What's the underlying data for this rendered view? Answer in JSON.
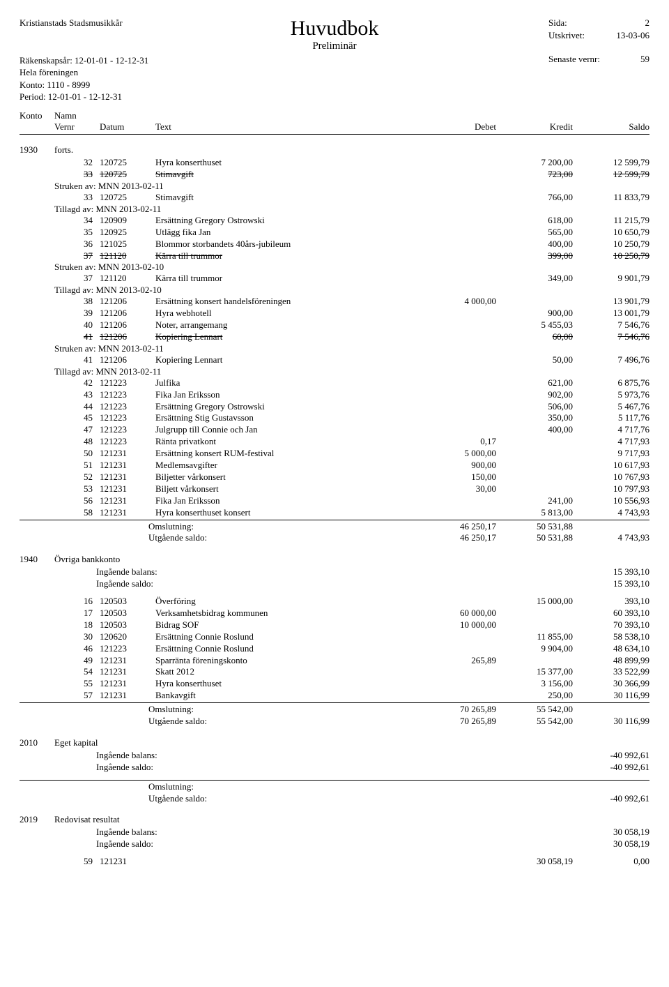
{
  "header": {
    "org": "Kristianstads Stadsmusikkår",
    "title": "Huvudbok",
    "subtitle": "Preliminär",
    "left_lines": [
      "Räkenskapsår: 12-01-01 - 12-12-31",
      "Hela föreningen",
      "Konto: 1110 - 8999",
      "Period: 12-01-01 - 12-12-31"
    ],
    "right": [
      {
        "label": "Sida:",
        "value": "2"
      },
      {
        "label": "Utskrivet:",
        "value": "13-03-06"
      },
      {
        "label": "Senaste vernr:",
        "value": "59"
      }
    ]
  },
  "col_headers": {
    "konto": "Konto",
    "namn": "Namn",
    "vernr": "Vernr",
    "datum": "Datum",
    "text": "Text",
    "debet": "Debet",
    "kredit": "Kredit",
    "saldo": "Saldo"
  },
  "acct1930": {
    "no": "1930",
    "name": "forts.",
    "entries": [
      {
        "v": "32",
        "d": "120725",
        "t": "Hyra konserthuset",
        "de": "",
        "k": "7 200,00",
        "s": "12 599,79"
      },
      {
        "v": "33",
        "d": "120725",
        "t": "Stimavgift",
        "de": "",
        "k": "723,00",
        "s": "12 599,79",
        "strike": true
      },
      {
        "note": "Struken av: MNN 2013-02-11"
      },
      {
        "v": "33",
        "d": "120725",
        "t": "Stimavgift",
        "de": "",
        "k": "766,00",
        "s": "11 833,79"
      },
      {
        "note": "Tillagd av: MNN 2013-02-11"
      },
      {
        "v": "34",
        "d": "120909",
        "t": "Ersättning Gregory Ostrowski",
        "de": "",
        "k": "618,00",
        "s": "11 215,79"
      },
      {
        "v": "35",
        "d": "120925",
        "t": "Utlägg fika Jan",
        "de": "",
        "k": "565,00",
        "s": "10 650,79"
      },
      {
        "v": "36",
        "d": "121025",
        "t": "Blommor storbandets 40års-jubileum",
        "de": "",
        "k": "400,00",
        "s": "10 250,79"
      },
      {
        "v": "37",
        "d": "121120",
        "t": "Kärra till trummor",
        "de": "",
        "k": "399,00",
        "s": "10 250,79",
        "strike": true
      },
      {
        "note": "Struken av: MNN 2013-02-10"
      },
      {
        "v": "37",
        "d": "121120",
        "t": "Kärra till trummor",
        "de": "",
        "k": "349,00",
        "s": "9 901,79"
      },
      {
        "note": "Tillagd av: MNN 2013-02-10"
      },
      {
        "v": "38",
        "d": "121206",
        "t": "Ersättning konsert handelsföreningen",
        "de": "4 000,00",
        "k": "",
        "s": "13 901,79"
      },
      {
        "v": "39",
        "d": "121206",
        "t": "Hyra webhotell",
        "de": "",
        "k": "900,00",
        "s": "13 001,79"
      },
      {
        "v": "40",
        "d": "121206",
        "t": "Noter, arrangemang",
        "de": "",
        "k": "5 455,03",
        "s": "7 546,76"
      },
      {
        "v": "41",
        "d": "121206",
        "t": "Kopiering Lennart",
        "de": "",
        "k": "60,00",
        "s": "7 546,76",
        "strike": true
      },
      {
        "note": "Struken av: MNN 2013-02-11"
      },
      {
        "v": "41",
        "d": "121206",
        "t": "Kopiering Lennart",
        "de": "",
        "k": "50,00",
        "s": "7 496,76"
      },
      {
        "note": "Tillagd av: MNN 2013-02-11"
      },
      {
        "v": "42",
        "d": "121223",
        "t": "Julfika",
        "de": "",
        "k": "621,00",
        "s": "6 875,76"
      },
      {
        "v": "43",
        "d": "121223",
        "t": "Fika Jan Eriksson",
        "de": "",
        "k": "902,00",
        "s": "5 973,76"
      },
      {
        "v": "44",
        "d": "121223",
        "t": "Ersättning Gregory Ostrowski",
        "de": "",
        "k": "506,00",
        "s": "5 467,76"
      },
      {
        "v": "45",
        "d": "121223",
        "t": "Ersättning Stig Gustavsson",
        "de": "",
        "k": "350,00",
        "s": "5 117,76"
      },
      {
        "v": "47",
        "d": "121223",
        "t": "Julgrupp till Connie och Jan",
        "de": "",
        "k": "400,00",
        "s": "4 717,76"
      },
      {
        "v": "48",
        "d": "121223",
        "t": "Ränta privatkont",
        "de": "0,17",
        "k": "",
        "s": "4 717,93"
      },
      {
        "v": "50",
        "d": "121231",
        "t": "Ersättning konsert RUM-festival",
        "de": "5 000,00",
        "k": "",
        "s": "9 717,93"
      },
      {
        "v": "51",
        "d": "121231",
        "t": "Medlemsavgifter",
        "de": "900,00",
        "k": "",
        "s": "10 617,93"
      },
      {
        "v": "52",
        "d": "121231",
        "t": "Biljetter vårkonsert",
        "de": "150,00",
        "k": "",
        "s": "10 767,93"
      },
      {
        "v": "53",
        "d": "121231",
        "t": "Biljett vårkonsert",
        "de": "30,00",
        "k": "",
        "s": "10 797,93"
      },
      {
        "v": "56",
        "d": "121231",
        "t": "Fika Jan Eriksson",
        "de": "",
        "k": "241,00",
        "s": "10 556,93"
      },
      {
        "v": "58",
        "d": "121231",
        "t": "Hyra konserthuset konsert",
        "de": "",
        "k": "5 813,00",
        "s": "4 743,93"
      }
    ],
    "oms": {
      "label": "Omslutning:",
      "d": "46 250,17",
      "k": "50 531,88",
      "s": ""
    },
    "utg": {
      "label": "Utgående saldo:",
      "d": "46 250,17",
      "k": "50 531,88",
      "s": "4 743,93"
    }
  },
  "acct1940": {
    "no": "1940",
    "name": "Övriga bankkonto",
    "ing_balans": {
      "label": "Ingående balans:",
      "val": "15 393,10"
    },
    "ing_saldo": {
      "label": "Ingående saldo:",
      "val": "15 393,10"
    },
    "entries": [
      {
        "v": "16",
        "d": "120503",
        "t": "Överföring",
        "de": "",
        "k": "15 000,00",
        "s": "393,10"
      },
      {
        "v": "17",
        "d": "120503",
        "t": "Verksamhetsbidrag kommunen",
        "de": "60 000,00",
        "k": "",
        "s": "60 393,10"
      },
      {
        "v": "18",
        "d": "120503",
        "t": "Bidrag SOF",
        "de": "10 000,00",
        "k": "",
        "s": "70 393,10"
      },
      {
        "v": "30",
        "d": "120620",
        "t": "Ersättning Connie Roslund",
        "de": "",
        "k": "11 855,00",
        "s": "58 538,10"
      },
      {
        "v": "46",
        "d": "121223",
        "t": "Ersättning Connie Roslund",
        "de": "",
        "k": "9 904,00",
        "s": "48 634,10"
      },
      {
        "v": "49",
        "d": "121231",
        "t": "Sparränta föreningskonto",
        "de": "265,89",
        "k": "",
        "s": "48 899,99"
      },
      {
        "v": "54",
        "d": "121231",
        "t": "Skatt 2012",
        "de": "",
        "k": "15 377,00",
        "s": "33 522,99"
      },
      {
        "v": "55",
        "d": "121231",
        "t": "Hyra konserthuset",
        "de": "",
        "k": "3 156,00",
        "s": "30 366,99"
      },
      {
        "v": "57",
        "d": "121231",
        "t": "Bankavgift",
        "de": "",
        "k": "250,00",
        "s": "30 116,99"
      }
    ],
    "oms": {
      "label": "Omslutning:",
      "d": "70 265,89",
      "k": "55 542,00",
      "s": ""
    },
    "utg": {
      "label": "Utgående saldo:",
      "d": "70 265,89",
      "k": "55 542,00",
      "s": "30 116,99"
    }
  },
  "acct2010": {
    "no": "2010",
    "name": "Eget kapital",
    "ing_balans": {
      "label": "Ingående balans:",
      "val": "-40 992,61"
    },
    "ing_saldo": {
      "label": "Ingående saldo:",
      "val": "-40 992,61"
    },
    "oms": {
      "label": "Omslutning:",
      "d": "",
      "k": "",
      "s": ""
    },
    "utg": {
      "label": "Utgående saldo:",
      "d": "",
      "k": "",
      "s": "-40 992,61"
    }
  },
  "acct2019": {
    "no": "2019",
    "name": "Redovisat resultat",
    "ing_balans": {
      "label": "Ingående balans:",
      "val": "30 058,19"
    },
    "ing_saldo": {
      "label": "Ingående saldo:",
      "val": "30 058,19"
    },
    "entries": [
      {
        "v": "59",
        "d": "121231",
        "t": "",
        "de": "",
        "k": "30 058,19",
        "s": "0,00"
      }
    ]
  }
}
